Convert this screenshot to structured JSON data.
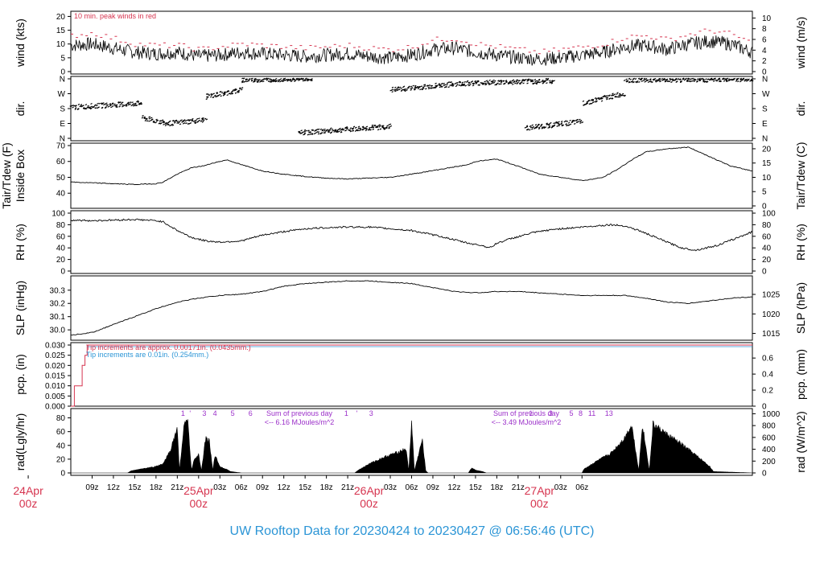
{
  "title": "UW Rooftop Data for 20230424  to  20230427 @ 06:56:46  (UTC)",
  "colors": {
    "title": "#2b95d6",
    "date": "#d6344f",
    "peak": "#d6344f",
    "rain_red": "#d6344f",
    "rain_blue": "#2b95d6",
    "purple": "#9b2fc9"
  },
  "chart_data": [
    {
      "type": "line",
      "panel": "wind",
      "ylabel_left": "wind (kts)",
      "ylabel_right": "wind (m/s)",
      "ylim": [
        0,
        21
      ],
      "yticks_left": [
        "0",
        "5",
        "10",
        "15",
        "20"
      ],
      "yticks_right": [
        "0",
        "2",
        "4",
        "6",
        "8",
        "10"
      ],
      "annotation": "10 min. peak winds in red",
      "series": [
        {
          "values": [
            9.5,
            10,
            8.5,
            7,
            6.5,
            7,
            5.5,
            6,
            7,
            6.5,
            6,
            5.5,
            6,
            6.5,
            5.5,
            5,
            6,
            8,
            8.5,
            7,
            6,
            5,
            4.5,
            5,
            6,
            7,
            9,
            9.5,
            8,
            10,
            11,
            10,
            7
          ]
        },
        {
          "values": [
            13,
            14,
            12,
            10,
            9.5,
            9.5,
            8,
            9,
            10,
            9.5,
            9,
            8.5,
            9,
            9.5,
            8.5,
            8,
            9,
            11.5,
            12,
            10,
            9,
            8,
            7,
            8,
            9,
            10,
            12.5,
            13,
            11.5,
            13.5,
            15,
            13.5,
            10
          ]
        }
      ]
    },
    {
      "type": "scatter",
      "panel": "dir",
      "ylabel_left": "dir.",
      "ylabel_right": "dir.",
      "yticks": [
        "N",
        "E",
        "S",
        "W",
        "N"
      ],
      "segments": [
        {
          "x": [
            0,
            10
          ],
          "y": [
            185,
            210
          ]
        },
        {
          "x": [
            10,
            13
          ],
          "y": [
            120,
            95
          ]
        },
        {
          "x": [
            13,
            19
          ],
          "y": [
            85,
            110
          ]
        },
        {
          "x": [
            19,
            24
          ],
          "y": [
            250,
            290
          ]
        },
        {
          "x": [
            24,
            34
          ],
          "y": [
            350,
            360
          ]
        },
        {
          "x": [
            32,
            45
          ],
          "y": [
            30,
            70
          ]
        },
        {
          "x": [
            45,
            55
          ],
          "y": [
            290,
            330
          ]
        },
        {
          "x": [
            55,
            68
          ],
          "y": [
            330,
            345
          ]
        },
        {
          "x": [
            64,
            72
          ],
          "y": [
            60,
            100
          ]
        },
        {
          "x": [
            72,
            78
          ],
          "y": [
            210,
            270
          ]
        },
        {
          "x": [
            78,
            96
          ],
          "y": [
            350,
            355
          ]
        }
      ]
    },
    {
      "type": "line",
      "panel": "temperature",
      "ylabel_left": "Tair/Tdew (F)\nInside Box",
      "ylabel_right": "Tair/Tdew (C)",
      "ylim": [
        32,
        70
      ],
      "yticks_left": [
        "40",
        "50",
        "60",
        "70"
      ],
      "yticks_right": [
        "0",
        "5",
        "10",
        "15",
        "20"
      ],
      "x": [
        0,
        3,
        6,
        9,
        12,
        13,
        15,
        17,
        19,
        20,
        22,
        24,
        27,
        30,
        33,
        36,
        39,
        42,
        45,
        48,
        52,
        56,
        57,
        60,
        63,
        66,
        69,
        72,
        73,
        75,
        77,
        79,
        81,
        84,
        87,
        90,
        93,
        96
      ],
      "y": [
        47,
        46.5,
        46,
        45.5,
        46,
        47,
        52,
        56,
        57.5,
        59,
        61,
        58,
        54,
        52,
        50.5,
        49.5,
        49,
        49.5,
        50,
        52,
        55,
        58,
        60,
        61.5,
        57,
        52,
        50,
        48,
        48.5,
        50,
        55,
        61,
        66,
        68,
        69,
        63,
        57,
        54
      ]
    },
    {
      "type": "line",
      "panel": "rh",
      "ylabel_left": "RH (%)",
      "ylabel_right": "RH (%)",
      "ylim": [
        0,
        100
      ],
      "yticks": [
        "0",
        "20",
        "40",
        "60",
        "80",
        "100"
      ],
      "x": [
        0,
        3,
        6,
        9,
        12,
        13,
        15,
        17,
        19,
        21,
        24,
        27,
        30,
        33,
        36,
        39,
        42,
        45,
        48,
        52,
        56,
        58,
        59,
        60,
        62,
        65,
        68,
        72,
        74,
        76,
        78,
        80,
        83,
        86,
        88,
        91,
        94,
        96
      ],
      "y": [
        88,
        87,
        88,
        89,
        87,
        85,
        70,
        58,
        52,
        50,
        52,
        62,
        68,
        73,
        75,
        76,
        76,
        73,
        70,
        60,
        48,
        44,
        40,
        48,
        56,
        66,
        72,
        76,
        78,
        80,
        78,
        70,
        55,
        40,
        36,
        44,
        58,
        68
      ]
    },
    {
      "type": "line",
      "panel": "slp",
      "ylabel_left": "SLP (inHg)",
      "ylabel_right": "SLP (hPa)",
      "ylim": [
        29.94,
        30.39
      ],
      "yticks_left": [
        "30.0",
        "30.1",
        "30.2",
        "30.3"
      ],
      "yticks_right": [
        "1015",
        "1020",
        "1025"
      ],
      "x": [
        0,
        3,
        6,
        9,
        12,
        15,
        18,
        21,
        24,
        27,
        30,
        33,
        36,
        39,
        42,
        45,
        48,
        51,
        54,
        57,
        60,
        63,
        66,
        69,
        72,
        75,
        78,
        81,
        84,
        87,
        90,
        93,
        96
      ],
      "y": [
        29.96,
        29.98,
        30.04,
        30.1,
        30.16,
        30.21,
        30.24,
        30.26,
        30.27,
        30.29,
        30.33,
        30.35,
        30.36,
        30.37,
        30.37,
        30.36,
        30.35,
        30.32,
        30.29,
        30.28,
        30.29,
        30.29,
        30.28,
        30.27,
        30.26,
        30.26,
        30.26,
        30.24,
        30.21,
        30.2,
        30.22,
        30.24,
        30.25
      ]
    },
    {
      "type": "line",
      "panel": "precip",
      "ylabel_left": "pcp. (in)",
      "ylabel_right": "pcp. (mm)",
      "ylim": [
        0,
        0.03
      ],
      "yticks_left": [
        "0.000",
        "0.005",
        "0.010",
        "0.015",
        "0.020",
        "0.025",
        "0.030"
      ],
      "yticks_right": [
        "0",
        "0.2",
        "0.4",
        "0.6"
      ],
      "note_red": "Tip increments are approx. 0.00171in. (0.0435mm.)",
      "note_blue": "Tip increments are 0.01in. (0.254mm.)",
      "x": [
        0,
        0.5,
        0.5,
        1.6,
        1.6,
        2,
        2,
        2.3,
        2.3,
        96
      ],
      "y": [
        0,
        0,
        0.01,
        0.01,
        0.02,
        0.02,
        0.025,
        0.025,
        0.03,
        0.03
      ]
    },
    {
      "type": "area",
      "panel": "radiation",
      "ylabel_left": "rad(Lgly/hr)",
      "ylabel_right": "rad (W/m^2)",
      "ylim": [
        0,
        90
      ],
      "yticks_left": [
        "0",
        "20",
        "40",
        "60",
        "80"
      ],
      "yticks_right": [
        "0",
        "200",
        "400",
        "600",
        "800",
        "1000"
      ],
      "x": [
        0,
        8,
        8.5,
        10,
        12,
        13,
        14,
        15,
        15.3,
        16,
        16.5,
        17,
        17.3,
        18,
        18.4,
        19,
        19.5,
        20,
        20.3,
        21,
        22,
        22.5,
        24,
        26,
        26.3,
        30,
        40,
        40.5,
        42,
        44,
        46,
        47.2,
        47.6,
        48,
        48.4,
        49.5,
        50,
        50.3,
        51,
        56,
        56.5,
        57,
        58,
        58.5,
        72,
        72.3,
        74,
        76,
        77,
        78,
        79,
        80,
        80.5,
        81.5,
        82,
        84,
        86,
        88,
        90,
        90.5,
        96
      ],
      "y": [
        0,
        0,
        3,
        6,
        10,
        14,
        35,
        70,
        3,
        78,
        78,
        3,
        18,
        30,
        3,
        55,
        50,
        3,
        28,
        10,
        5,
        2,
        0,
        0,
        0,
        0,
        0,
        4,
        14,
        24,
        32,
        38,
        3,
        80,
        3,
        52,
        3,
        0,
        0,
        0,
        8,
        4,
        2,
        0,
        0,
        6,
        18,
        30,
        42,
        55,
        75,
        3,
        76,
        3,
        76,
        60,
        45,
        28,
        10,
        2,
        0
      ],
      "labels_left": [
        "1",
        "'",
        "3",
        "4",
        "5",
        "6"
      ],
      "labels_mid": [
        "1",
        "'",
        "3"
      ],
      "labels_right": [
        "1",
        "'",
        "3",
        "5",
        "8",
        "11",
        "13"
      ],
      "note_1": "Sum of previous day",
      "note_1b": "<-- 6.16 MJoules/m^2",
      "note_2": "Sum of previous day",
      "note_2b": "<-- 3.49 MJoules/m^2"
    }
  ],
  "x_axis": {
    "hour_ticks": [
      "09z",
      "12z",
      "15z",
      "18z",
      "21z",
      "03z",
      "06z",
      "09z",
      "12z",
      "15z",
      "18z",
      "21z",
      "03z",
      "06z",
      "09z",
      "12z",
      "15z",
      "18z",
      "21z",
      "03z",
      "06z"
    ],
    "hour_positions": [
      9,
      12,
      15,
      18,
      21,
      27,
      30,
      33,
      36,
      39,
      42,
      45,
      51,
      54,
      57,
      60,
      63,
      66,
      69,
      75,
      78
    ],
    "date_labels": [
      {
        "day": "24Apr",
        "hour": "00z",
        "x": 0
      },
      {
        "day": "25Apr",
        "hour": "00z",
        "x": 24
      },
      {
        "day": "26Apr",
        "hour": "00z",
        "x": 48
      },
      {
        "day": "27Apr",
        "hour": "00z",
        "x": 72
      }
    ],
    "start_hour": 6,
    "end_hour": 102
  }
}
